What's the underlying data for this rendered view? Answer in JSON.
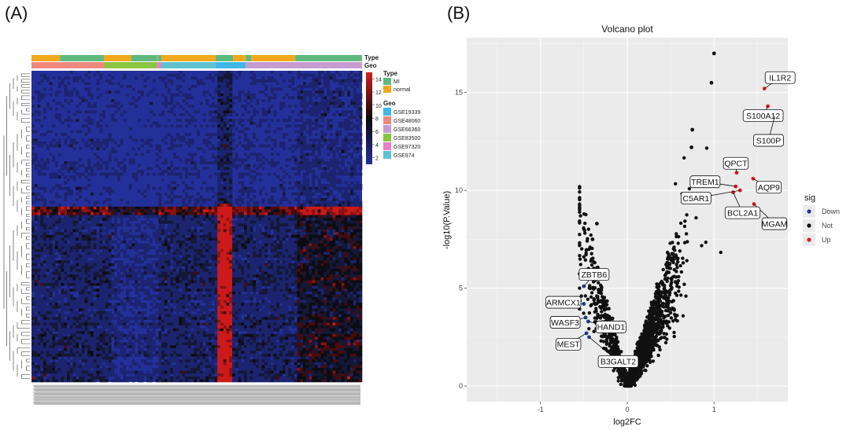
{
  "panels": {
    "a_label": "(A)",
    "b_label": "(B)"
  },
  "heatmap": {
    "annotation_rows": [
      "Type",
      "Geo"
    ],
    "type_segments": [
      "normal",
      "MI",
      "normal",
      "MI",
      "normal",
      "MI",
      "normal",
      "MI",
      "normal",
      "MI",
      "normal",
      "MI"
    ],
    "geo_segments": [
      "GSE48060",
      "GSE83500",
      "GSE97320",
      "GSE974",
      "GSE19339",
      "GSE66360"
    ],
    "colorbar": {
      "ticks": [
        "14",
        "12",
        "10",
        "8",
        "6",
        "4",
        "2"
      ],
      "min": 1,
      "max": 15
    },
    "legend": {
      "type_title": "Type",
      "type_items": [
        {
          "label": "MI",
          "color": "#5fb97f"
        },
        {
          "label": "normal",
          "color": "#f2a81d"
        }
      ],
      "geo_title": "Geo",
      "geo_items": [
        {
          "label": "GSE19339",
          "color": "#3fb7ea"
        },
        {
          "label": "GSE48060",
          "color": "#f0877c"
        },
        {
          "label": "GSE66360",
          "color": "#c59bd0"
        },
        {
          "label": "GSE83500",
          "color": "#8bc43f"
        },
        {
          "label": "GSE97320",
          "color": "#e87fc4"
        },
        {
          "label": "GSE974",
          "color": "#5ec3cf"
        }
      ]
    },
    "colors": {
      "low": "#24309a",
      "mid": "#0a0a0a",
      "high": "#d61e1e"
    }
  },
  "chart_data": {
    "type": "scatter",
    "title": "Volcano plot",
    "xlabel": "log2FC",
    "ylabel": "-log10(P.Value)",
    "xlim": [
      -1.85,
      1.85
    ],
    "ylim": [
      -0.8,
      17.8
    ],
    "xticks": [
      "-1",
      "0",
      "1"
    ],
    "yticks": [
      "0",
      "5",
      "10",
      "15"
    ],
    "grid": true,
    "legend": {
      "title": "sig",
      "placement": "right",
      "items": [
        {
          "label": "Down",
          "color": "#1f3a93"
        },
        {
          "label": "Not",
          "color": "#111111"
        },
        {
          "label": "Up",
          "color": "#e41a1c"
        }
      ]
    },
    "series": [
      {
        "name": "Down",
        "points": [
          {
            "x": -0.5,
            "y": 5.1,
            "label": "ZBTB6"
          },
          {
            "x": -0.5,
            "y": 4.2,
            "label": "ARMCX1"
          },
          {
            "x": -0.48,
            "y": 3.5,
            "label": "WASF3"
          },
          {
            "x": -0.45,
            "y": 3.3,
            "label": "HAND1"
          },
          {
            "x": -0.47,
            "y": 2.7,
            "label": "MEST"
          },
          {
            "x": -0.44,
            "y": 2.5,
            "label": "B3GALT2"
          }
        ]
      },
      {
        "name": "Up",
        "points": [
          {
            "x": 1.58,
            "y": 15.2,
            "label": "IL1R2"
          },
          {
            "x": 1.62,
            "y": 14.3,
            "label": "S100A12"
          },
          {
            "x": 1.7,
            "y": 13.8,
            "label": "S100P"
          },
          {
            "x": 1.26,
            "y": 10.9,
            "label": "QPCT"
          },
          {
            "x": 1.25,
            "y": 10.2,
            "label": "TREM1"
          },
          {
            "x": 1.45,
            "y": 10.6,
            "label": "AQP9"
          },
          {
            "x": 1.3,
            "y": 10.0,
            "label": "C5AR1"
          },
          {
            "x": 1.46,
            "y": 9.3,
            "label": "MGAM"
          },
          {
            "x": 1.22,
            "y": 9.9,
            "label": "BCL2A1"
          }
        ]
      },
      {
        "name": "Not",
        "points": [
          {
            "x": 1.0,
            "y": 17.0
          },
          {
            "x": 0.97,
            "y": 15.5
          },
          {
            "x": 0.75,
            "y": 13.1
          },
          {
            "x": 0.74,
            "y": 12.2
          },
          {
            "x": -0.35,
            "y": 8.3
          },
          {
            "x": -0.4,
            "y": 7.5
          }
        ]
      }
    ]
  }
}
